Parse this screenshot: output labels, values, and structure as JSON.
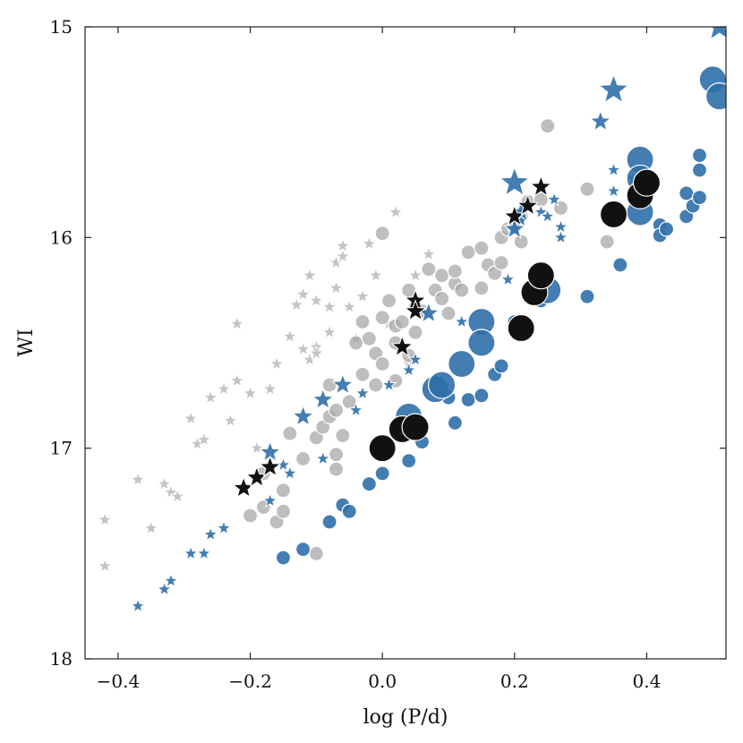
{
  "chart_data": {
    "type": "scatter",
    "xlabel": "log (P/d)",
    "ylabel": "WI",
    "xlim": [
      -0.45,
      0.52
    ],
    "ylim": [
      15,
      18
    ],
    "y_inverted": true,
    "grid": false,
    "x_ticks": [
      -0.4,
      -0.2,
      0.0,
      0.2,
      0.4
    ],
    "x_tick_labels": [
      "−0.4",
      "−0.2",
      "0.0",
      "0.2",
      "0.4"
    ],
    "y_ticks": [
      15,
      16,
      17,
      18
    ],
    "y_tick_labels": [
      "15",
      "16",
      "17",
      "18"
    ],
    "series": [
      {
        "marker": "star",
        "color": "#b0b0b0",
        "opacity": 0.75,
        "size": "small",
        "points": [
          [
            -0.42,
            17.34
          ],
          [
            -0.42,
            17.56
          ],
          [
            -0.37,
            17.15
          ],
          [
            -0.35,
            17.38
          ],
          [
            -0.33,
            17.17
          ],
          [
            -0.32,
            17.21
          ],
          [
            -0.31,
            17.23
          ],
          [
            -0.29,
            16.86
          ],
          [
            -0.28,
            16.98
          ],
          [
            -0.27,
            16.96
          ],
          [
            -0.26,
            16.76
          ],
          [
            -0.24,
            16.72
          ],
          [
            -0.23,
            16.87
          ],
          [
            -0.22,
            16.68
          ],
          [
            -0.22,
            16.41
          ],
          [
            -0.2,
            16.74
          ],
          [
            -0.19,
            17.0
          ],
          [
            -0.17,
            16.72
          ],
          [
            -0.16,
            16.6
          ],
          [
            -0.14,
            16.47
          ],
          [
            -0.13,
            16.32
          ],
          [
            -0.12,
            16.53
          ],
          [
            -0.12,
            16.27
          ],
          [
            -0.11,
            16.58
          ],
          [
            -0.11,
            16.18
          ],
          [
            -0.1,
            16.3
          ],
          [
            -0.1,
            16.52
          ],
          [
            -0.1,
            16.55
          ],
          [
            -0.08,
            16.33
          ],
          [
            -0.08,
            16.45
          ],
          [
            -0.07,
            16.12
          ],
          [
            -0.07,
            16.24
          ],
          [
            -0.06,
            16.04
          ],
          [
            -0.06,
            16.09
          ],
          [
            -0.05,
            16.33
          ],
          [
            -0.04,
            16.48
          ],
          [
            -0.03,
            16.28
          ],
          [
            -0.02,
            16.03
          ],
          [
            -0.01,
            16.18
          ],
          [
            0.01,
            16.41
          ],
          [
            0.02,
            15.88
          ],
          [
            0.04,
            16.6
          ],
          [
            0.05,
            16.18
          ],
          [
            0.07,
            16.08
          ]
        ]
      },
      {
        "marker": "circle",
        "color": "#a8a8a8",
        "opacity": 0.75,
        "size": "small",
        "points": [
          [
            -0.2,
            17.32
          ],
          [
            -0.18,
            17.28
          ],
          [
            -0.18,
            17.12
          ],
          [
            -0.16,
            17.35
          ],
          [
            -0.15,
            17.2
          ],
          [
            -0.15,
            17.3
          ],
          [
            -0.14,
            16.93
          ],
          [
            -0.12,
            17.05
          ],
          [
            -0.1,
            16.95
          ],
          [
            -0.1,
            17.5
          ],
          [
            -0.09,
            16.9
          ],
          [
            -0.08,
            16.85
          ],
          [
            -0.08,
            16.7
          ],
          [
            -0.07,
            16.82
          ],
          [
            -0.07,
            17.03
          ],
          [
            -0.07,
            17.1
          ],
          [
            -0.06,
            16.94
          ],
          [
            -0.05,
            16.78
          ],
          [
            -0.04,
            16.5
          ],
          [
            -0.03,
            16.65
          ],
          [
            -0.03,
            16.4
          ],
          [
            -0.02,
            16.48
          ],
          [
            -0.01,
            16.55
          ],
          [
            -0.01,
            16.7
          ],
          [
            0.0,
            16.38
          ],
          [
            0.0,
            16.6
          ],
          [
            0.01,
            16.3
          ],
          [
            0.02,
            16.5
          ],
          [
            0.02,
            16.42
          ],
          [
            0.02,
            16.68
          ],
          [
            0.03,
            16.4
          ],
          [
            0.04,
            16.56
          ],
          [
            0.04,
            16.25
          ],
          [
            0.05,
            16.33
          ],
          [
            0.05,
            16.45
          ],
          [
            0.06,
            16.35
          ],
          [
            0.07,
            16.15
          ],
          [
            0.08,
            16.25
          ],
          [
            0.09,
            16.29
          ],
          [
            0.09,
            16.18
          ],
          [
            0.1,
            16.36
          ],
          [
            0.11,
            16.22
          ],
          [
            0.11,
            16.16
          ],
          [
            0.12,
            16.25
          ],
          [
            0.13,
            16.07
          ],
          [
            0.15,
            16.24
          ],
          [
            0.15,
            16.05
          ],
          [
            0.16,
            16.13
          ],
          [
            0.17,
            16.17
          ],
          [
            0.18,
            16.0
          ],
          [
            0.18,
            16.12
          ],
          [
            0.19,
            15.96
          ],
          [
            0.2,
            15.95
          ],
          [
            0.21,
            15.9
          ],
          [
            0.21,
            16.02
          ],
          [
            0.22,
            15.83
          ],
          [
            0.24,
            15.82
          ],
          [
            0.25,
            15.47
          ],
          [
            0.27,
            15.86
          ],
          [
            0.31,
            15.77
          ],
          [
            0.34,
            16.02
          ],
          [
            0.0,
            15.98
          ]
        ]
      },
      {
        "marker": "star",
        "color": "#2f6fa8",
        "opacity": 0.9,
        "size": "small",
        "points": [
          [
            -0.37,
            17.75
          ],
          [
            -0.33,
            17.67
          ],
          [
            -0.32,
            17.63
          ],
          [
            -0.29,
            17.5
          ],
          [
            -0.27,
            17.5
          ],
          [
            -0.26,
            17.41
          ],
          [
            -0.24,
            17.38
          ],
          [
            -0.17,
            17.25
          ],
          [
            -0.15,
            17.08
          ],
          [
            -0.14,
            17.12
          ],
          [
            -0.09,
            17.05
          ],
          [
            -0.04,
            16.82
          ],
          [
            -0.03,
            16.74
          ],
          [
            0.01,
            16.7
          ],
          [
            0.04,
            16.63
          ],
          [
            0.05,
            16.58
          ],
          [
            0.12,
            16.4
          ],
          [
            0.19,
            16.2
          ],
          [
            0.21,
            15.92
          ],
          [
            0.24,
            15.88
          ],
          [
            0.25,
            15.9
          ],
          [
            0.26,
            15.82
          ],
          [
            0.27,
            15.95
          ],
          [
            0.27,
            16.0
          ],
          [
            0.35,
            15.78
          ],
          [
            0.35,
            15.68
          ],
          [
            0.38,
            15.72
          ],
          [
            0.4,
            15.75
          ]
        ]
      },
      {
        "marker": "star",
        "color": "#2f6fa8",
        "opacity": 0.9,
        "size": "medium",
        "points": [
          [
            -0.17,
            17.02
          ],
          [
            -0.12,
            16.85
          ],
          [
            -0.09,
            16.77
          ],
          [
            -0.06,
            16.7
          ],
          [
            0.07,
            16.36
          ],
          [
            0.2,
            15.96
          ],
          [
            0.21,
            15.88
          ],
          [
            0.33,
            15.45
          ]
        ]
      },
      {
        "marker": "star",
        "color": "#2f6fa8",
        "opacity": 0.9,
        "size": "large",
        "points": [
          [
            0.2,
            15.74
          ],
          [
            0.35,
            15.3
          ],
          [
            0.51,
            15.0
          ]
        ]
      },
      {
        "marker": "circle",
        "color": "#2f6fa8",
        "opacity": 0.9,
        "size": "small",
        "points": [
          [
            -0.15,
            17.52
          ],
          [
            -0.12,
            17.48
          ],
          [
            -0.08,
            17.35
          ],
          [
            -0.06,
            17.27
          ],
          [
            -0.05,
            17.3
          ],
          [
            -0.02,
            17.17
          ],
          [
            0.0,
            17.12
          ],
          [
            0.04,
            17.06
          ],
          [
            0.06,
            16.97
          ],
          [
            0.1,
            16.76
          ],
          [
            0.11,
            16.88
          ],
          [
            0.13,
            16.77
          ],
          [
            0.15,
            16.75
          ],
          [
            0.17,
            16.65
          ],
          [
            0.18,
            16.61
          ],
          [
            0.2,
            16.4
          ],
          [
            0.24,
            16.3
          ],
          [
            0.31,
            16.28
          ],
          [
            0.36,
            16.13
          ],
          [
            0.42,
            15.94
          ],
          [
            0.42,
            15.99
          ],
          [
            0.43,
            15.96
          ],
          [
            0.46,
            15.9
          ],
          [
            0.46,
            15.79
          ],
          [
            0.47,
            15.85
          ],
          [
            0.48,
            15.81
          ],
          [
            0.48,
            15.68
          ],
          [
            0.48,
            15.61
          ]
        ]
      },
      {
        "marker": "circle",
        "color": "#2f6fa8",
        "opacity": 0.9,
        "size": "large",
        "points": [
          [
            0.04,
            16.85
          ],
          [
            0.08,
            16.72
          ],
          [
            0.09,
            16.7
          ],
          [
            0.12,
            16.6
          ],
          [
            0.15,
            16.4
          ],
          [
            0.15,
            16.5
          ],
          [
            0.25,
            16.25
          ],
          [
            0.39,
            15.88
          ],
          [
            0.39,
            15.63
          ],
          [
            0.39,
            15.72
          ],
          [
            0.5,
            15.25
          ],
          [
            0.51,
            15.33
          ]
        ]
      },
      {
        "marker": "star",
        "color": "#111111",
        "opacity": 1.0,
        "size": "medium",
        "points": [
          [
            -0.21,
            17.19
          ],
          [
            -0.19,
            17.14
          ],
          [
            -0.17,
            17.09
          ],
          [
            0.03,
            16.52
          ],
          [
            0.05,
            16.3
          ],
          [
            0.05,
            16.35
          ],
          [
            0.2,
            15.9
          ],
          [
            0.22,
            15.85
          ],
          [
            0.24,
            15.76
          ]
        ]
      },
      {
        "marker": "circle",
        "color": "#111111",
        "opacity": 1.0,
        "size": "large",
        "points": [
          [
            0.0,
            17.0
          ],
          [
            0.03,
            16.91
          ],
          [
            0.05,
            16.9
          ],
          [
            0.21,
            16.43
          ],
          [
            0.23,
            16.26
          ],
          [
            0.24,
            16.18
          ],
          [
            0.35,
            15.89
          ],
          [
            0.39,
            15.8
          ],
          [
            0.4,
            15.74
          ]
        ]
      }
    ]
  }
}
